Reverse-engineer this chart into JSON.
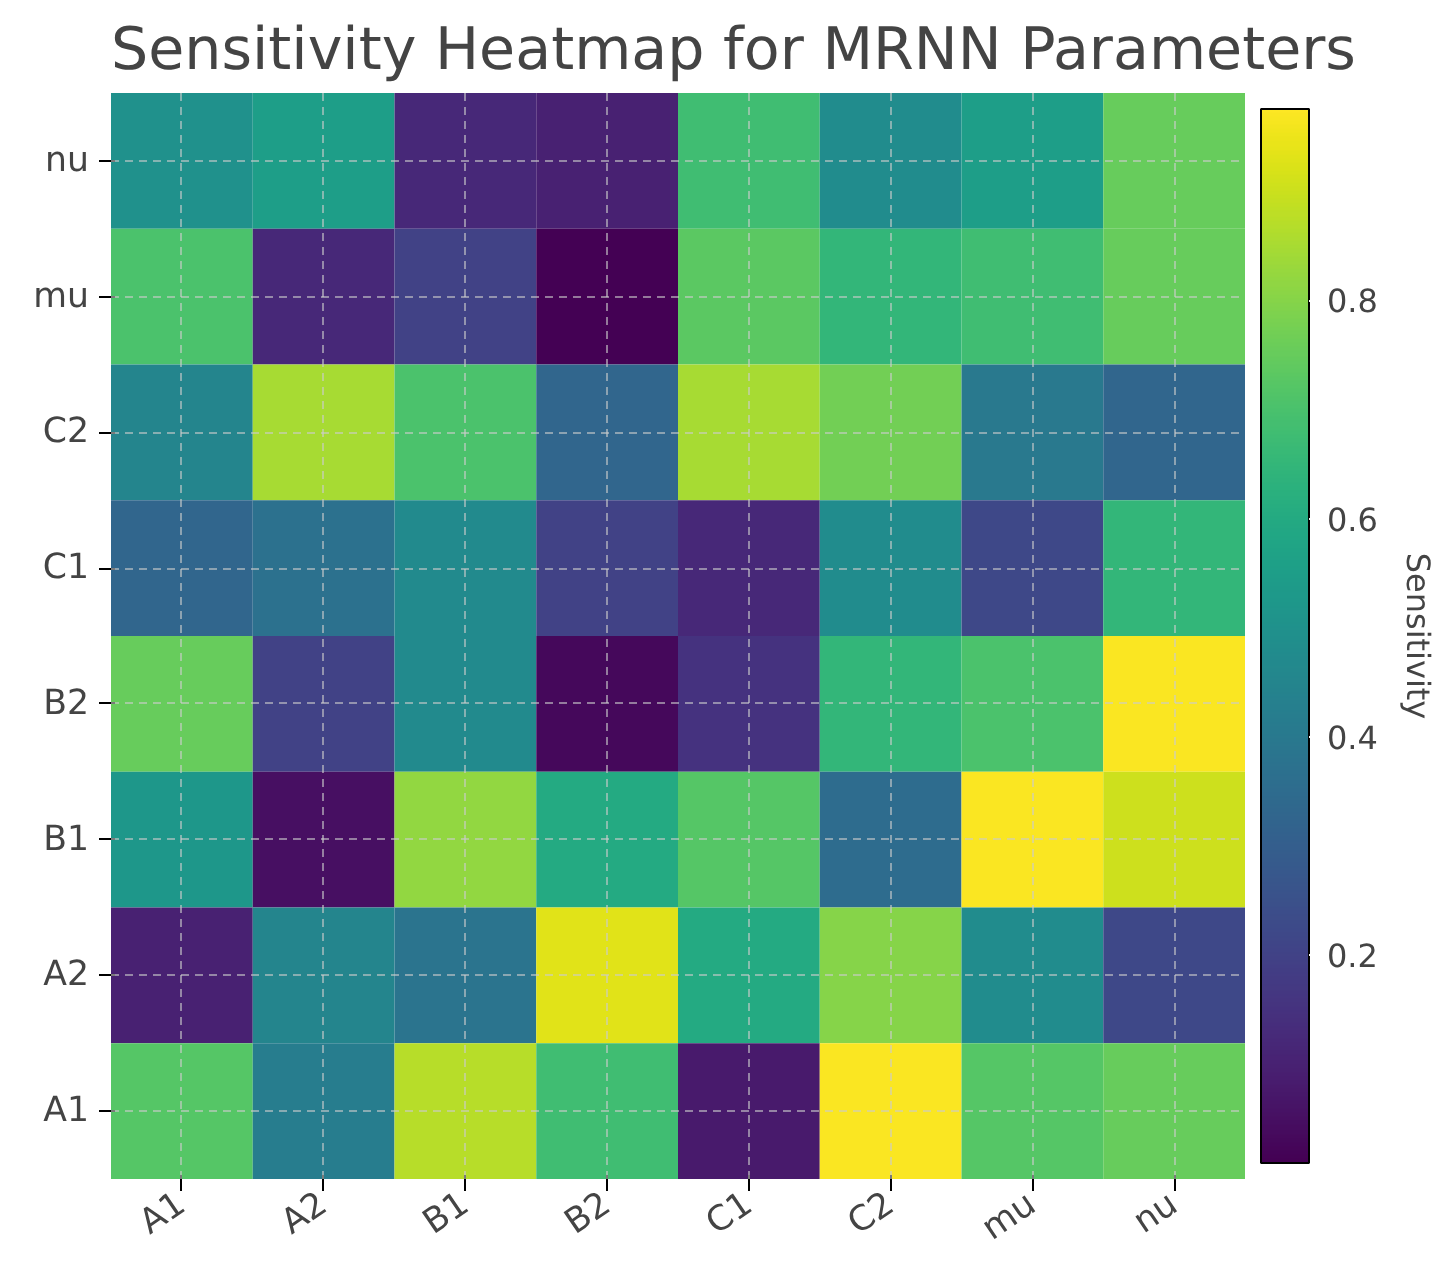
{
  "chart_data": {
    "type": "heatmap",
    "title": "Sensitivity Heatmap for MRNN Parameters",
    "clabel": "Sensitivity",
    "categories": [
      "A1",
      "A2",
      "B1",
      "B2",
      "C1",
      "C2",
      "mu",
      "nu"
    ],
    "y_categories": [
      "nu",
      "mu",
      "C2",
      "C1",
      "B2",
      "B1",
      "A2",
      "A1"
    ],
    "cells": [
      [
        0.5,
        0.55,
        0.12,
        0.1,
        0.68,
        0.48,
        0.55,
        0.75
      ],
      [
        0.7,
        0.12,
        0.2,
        0.01,
        0.73,
        0.65,
        0.68,
        0.75
      ],
      [
        0.45,
        0.85,
        0.7,
        0.33,
        0.85,
        0.77,
        0.4,
        0.33
      ],
      [
        0.33,
        0.37,
        0.47,
        0.2,
        0.12,
        0.48,
        0.22,
        0.65
      ],
      [
        0.75,
        0.2,
        0.47,
        0.03,
        0.15,
        0.65,
        0.7,
        0.97
      ],
      [
        0.52,
        0.05,
        0.82,
        0.6,
        0.72,
        0.35,
        0.97,
        0.9
      ],
      [
        0.1,
        0.45,
        0.38,
        0.93,
        0.6,
        0.8,
        0.48,
        0.22
      ],
      [
        0.72,
        0.42,
        0.87,
        0.68,
        0.08,
        0.97,
        0.72,
        0.75
      ]
    ],
    "clim": [
      0.01,
      0.975
    ],
    "cticks": [
      0.2,
      0.4,
      0.6,
      0.8
    ],
    "grid": true
  }
}
